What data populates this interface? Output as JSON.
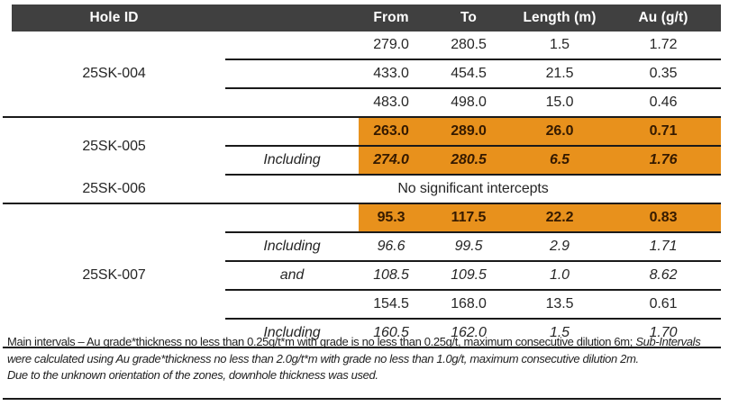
{
  "colors": {
    "header_bg": "#404040",
    "header_text": "#FFFFFF",
    "highlight": "#E8911C",
    "highlight_text": "#351A00",
    "line": "#1A1A1A",
    "body_text": "#262626"
  },
  "table": {
    "columns": [
      "Hole ID",
      "",
      "From",
      "To",
      "Length (m)",
      "Au (g/t)"
    ],
    "groups": [
      {
        "hole_id": "25SK-004",
        "top_line": "none",
        "rows": [
          {
            "qualifier": "",
            "from": "279.0",
            "to": "280.5",
            "length": "1.5",
            "au": "1.72",
            "highlight": false,
            "style": "normal"
          },
          {
            "qualifier": "",
            "from": "433.0",
            "to": "454.5",
            "length": "21.5",
            "au": "0.35",
            "highlight": false,
            "style": "normal"
          },
          {
            "qualifier": "",
            "from": "483.0",
            "to": "498.0",
            "length": "15.0",
            "au": "0.46",
            "highlight": false,
            "style": "normal"
          }
        ]
      },
      {
        "hole_id": "25SK-005",
        "top_line": "full",
        "rows": [
          {
            "qualifier": "",
            "from": "263.0",
            "to": "289.0",
            "length": "26.0",
            "au": "0.71",
            "highlight": true,
            "style": "bold"
          },
          {
            "qualifier": "Including",
            "from": "274.0",
            "to": "280.5",
            "length": "6.5",
            "au": "1.76",
            "highlight": true,
            "style": "bold-italic"
          }
        ]
      },
      {
        "hole_id": "25SK-006",
        "top_line": "partial",
        "rows": [
          {
            "note": "No significant intercepts"
          }
        ]
      },
      {
        "hole_id": "25SK-007",
        "top_line": "full",
        "rows": [
          {
            "qualifier": "",
            "from": "95.3",
            "to": "117.5",
            "length": "22.2",
            "au": "0.83",
            "highlight": true,
            "style": "bold"
          },
          {
            "qualifier": "Including",
            "from": "96.6",
            "to": "99.5",
            "length": "2.9",
            "au": "1.71",
            "highlight": false,
            "style": "italic"
          },
          {
            "qualifier": "and",
            "from": "108.5",
            "to": "109.5",
            "length": "1.0",
            "au": "8.62",
            "highlight": false,
            "style": "italic"
          },
          {
            "qualifier": "",
            "from": "154.5",
            "to": "168.0",
            "length": "13.5",
            "au": "0.61",
            "highlight": false,
            "style": "normal"
          },
          {
            "qualifier": "Including",
            "from": "160.5",
            "to": "162.0",
            "length": "1.5",
            "au": "1.70",
            "highlight": false,
            "style": "italic"
          }
        ]
      }
    ]
  },
  "footnotes": {
    "paragraphs": [
      [
        {
          "text": "Main intervals – Au grade*thickness no less than 0.25g/t*m with grade is no less than 0.25g/t, maximum consecutive dilution 6m; ",
          "italic": false
        },
        {
          "text": "Sub-Intervals were calculated using Au grade*thickness no less than 2.0g/t*m with grade no less than 1.0g/t, maximum consecutive dilution 2m.",
          "italic": true
        }
      ],
      [
        {
          "text": "Due to the unknown orientation of the zones, downhole thickness was used.",
          "italic": true
        }
      ]
    ]
  }
}
